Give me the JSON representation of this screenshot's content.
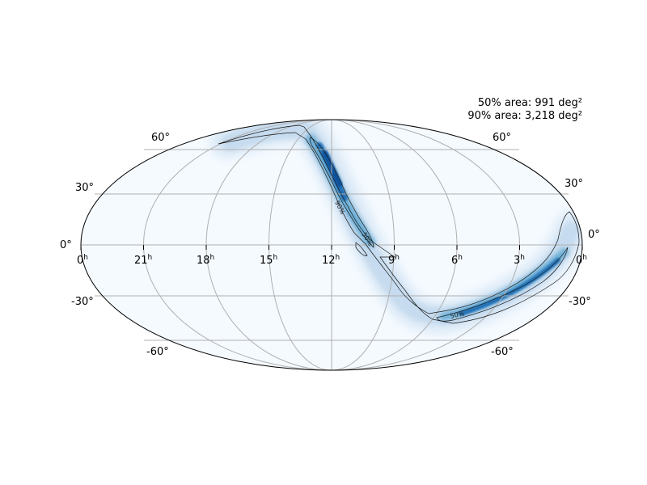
{
  "annotation": {
    "area50": "50% area: 991 deg²",
    "area90": "90% area: 3,218 deg²"
  },
  "ra_ticks": [
    {
      "hours": "0",
      "unit": "h"
    },
    {
      "hours": "21",
      "unit": "h"
    },
    {
      "hours": "18",
      "unit": "h"
    },
    {
      "hours": "15",
      "unit": "h"
    },
    {
      "hours": "12",
      "unit": "h"
    },
    {
      "hours": "9",
      "unit": "h"
    },
    {
      "hours": "6",
      "unit": "h"
    },
    {
      "hours": "3",
      "unit": "h"
    },
    {
      "hours": "0",
      "unit": "h"
    }
  ],
  "dec_ticks": {
    "left": [
      "60°",
      "30°",
      "0°",
      "-30°",
      "-60°"
    ],
    "right": [
      "60°",
      "30°",
      "0°",
      "-30°",
      "-60°"
    ]
  },
  "contour_labels": {
    "c90": "90%",
    "c50_upper": "50%",
    "c50_lower": "50%"
  },
  "colors": {
    "background_prob": "#f5faff",
    "colormap": "Blues",
    "grid": "#b0b0b0",
    "contour": "#1a1a1a"
  }
}
